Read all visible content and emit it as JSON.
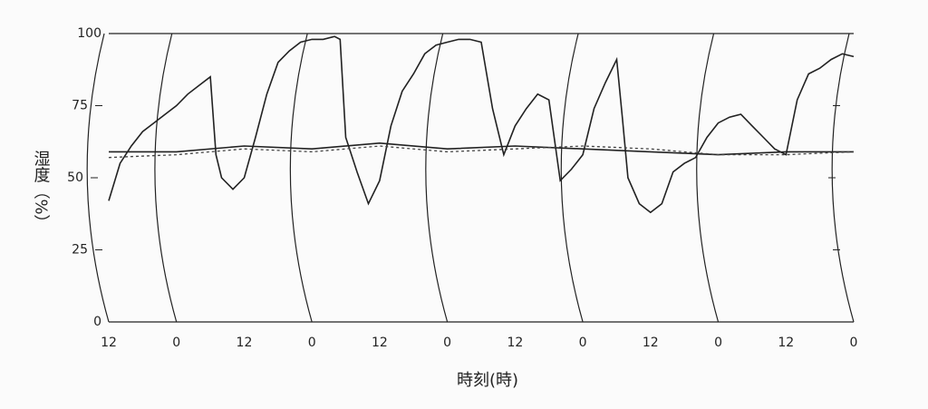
{
  "chart_data": {
    "type": "line",
    "y_label": "湿度（%）",
    "x_label": "時刻(時)",
    "xlim": [
      12,
      144
    ],
    "ylim": [
      0,
      100
    ],
    "yticks": [
      0,
      25,
      50,
      75,
      100
    ],
    "xticks": [
      12,
      {
        "value": 24,
        "label": "0"
      },
      {
        "value": 36,
        "label": "12"
      },
      {
        "value": 48,
        "label": "0"
      },
      {
        "value": 60,
        "label": "12"
      },
      {
        "value": 72,
        "label": "0"
      },
      {
        "value": 84,
        "label": "12"
      },
      {
        "value": 96,
        "label": "0"
      },
      {
        "value": 108,
        "label": "12"
      },
      {
        "value": 120,
        "label": "0"
      },
      {
        "value": 132,
        "label": "12"
      },
      {
        "value": 144,
        "label": "0"
      }
    ],
    "series": [
      {
        "color": "#222222",
        "dash": false,
        "x": [
          12,
          14,
          16,
          18,
          20,
          22,
          24,
          26,
          28,
          30,
          31,
          32,
          34,
          36,
          38,
          40,
          42,
          44,
          46,
          48,
          50,
          52,
          53,
          54,
          56,
          58,
          60,
          62,
          64,
          66,
          68,
          70,
          72,
          74,
          76,
          78,
          80,
          82,
          84,
          86,
          88,
          90,
          92,
          94,
          96,
          98,
          100,
          102,
          103,
          104,
          106,
          108,
          110,
          112,
          114,
          116,
          118,
          120,
          122,
          124,
          126,
          128,
          130,
          132,
          134,
          136,
          138,
          140,
          142,
          144
        ],
        "values": [
          42,
          55,
          61,
          66,
          69,
          72,
          75,
          79,
          82,
          85,
          58,
          50,
          46,
          50,
          64,
          79,
          90,
          94,
          97,
          98,
          98,
          99,
          98,
          64,
          52,
          41,
          49,
          68,
          80,
          86,
          93,
          96,
          97,
          98,
          98,
          97,
          74,
          58,
          68,
          74,
          79,
          77,
          49,
          53,
          58,
          74,
          83,
          91,
          71,
          50,
          41,
          38,
          41,
          52,
          55,
          57,
          64,
          69,
          71,
          72,
          68,
          64,
          60,
          58,
          77,
          86,
          88,
          91,
          93,
          92
        ]
      },
      {
        "color": "#222222",
        "dash": false,
        "x": [
          12,
          24,
          36,
          48,
          60,
          72,
          84,
          96,
          108,
          120,
          132,
          144
        ],
        "values": [
          59,
          59,
          61,
          60,
          62,
          60,
          61,
          60,
          59,
          58,
          59,
          59
        ]
      },
      {
        "color": "#444444",
        "dash": true,
        "x": [
          12,
          24,
          36,
          48,
          60,
          72,
          84,
          96,
          108,
          120,
          132,
          144
        ],
        "values": [
          57,
          58,
          60,
          59,
          61,
          59,
          60,
          61,
          60,
          58,
          58,
          59
        ]
      }
    ]
  }
}
